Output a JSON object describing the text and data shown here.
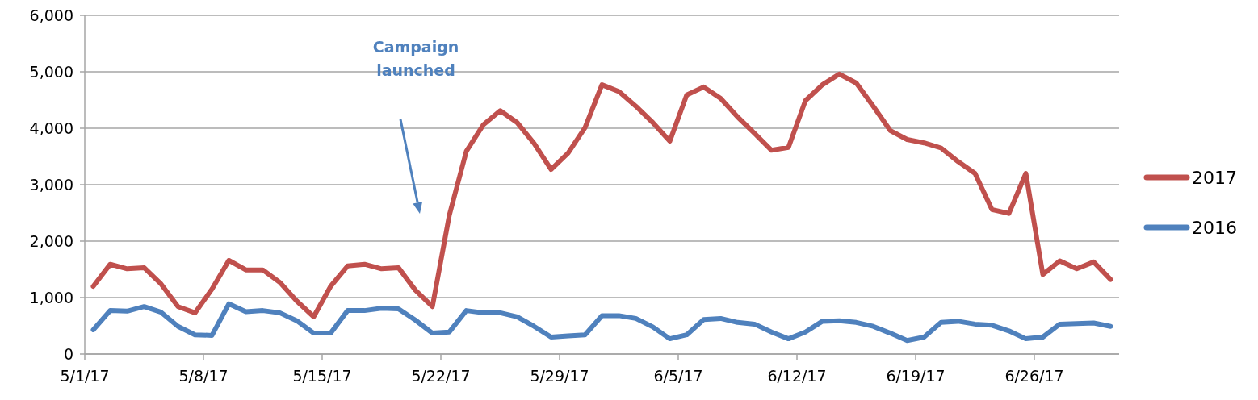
{
  "chart_data": {
    "type": "line",
    "x": [
      "2017-05-01T12:00",
      "2017-05-02T12:00",
      "2017-05-03T12:00",
      "2017-05-04T12:00",
      "2017-05-05T12:00",
      "2017-05-06T12:00",
      "2017-05-07T12:00",
      "2017-05-08T12:00",
      "2017-05-09T12:00",
      "2017-05-10T12:00",
      "2017-05-11T12:00",
      "2017-05-12T12:00",
      "2017-05-13T12:00",
      "2017-05-14T12:00",
      "2017-05-15T12:00",
      "2017-05-16T12:00",
      "2017-05-17T12:00",
      "2017-05-18T12:00",
      "2017-05-19T12:00",
      "2017-05-20T12:00",
      "2017-05-21T12:00",
      "2017-05-22T12:00",
      "2017-05-23T12:00",
      "2017-05-24T12:00",
      "2017-05-25T12:00",
      "2017-05-26T12:00",
      "2017-05-27T12:00",
      "2017-05-28T12:00",
      "2017-05-29T12:00",
      "2017-05-30T12:00",
      "2017-05-31T12:00",
      "2017-06-01T12:00",
      "2017-06-02T12:00",
      "2017-06-03T12:00",
      "2017-06-04T12:00",
      "2017-06-05T12:00",
      "2017-06-06T12:00",
      "2017-06-07T12:00",
      "2017-06-08T12:00",
      "2017-06-09T12:00",
      "2017-06-10T12:00",
      "2017-06-11T12:00",
      "2017-06-12T12:00",
      "2017-06-13T12:00",
      "2017-06-14T12:00",
      "2017-06-15T12:00",
      "2017-06-16T12:00",
      "2017-06-17T12:00",
      "2017-06-18T12:00",
      "2017-06-19T12:00",
      "2017-06-20T12:00",
      "2017-06-21T12:00",
      "2017-06-22T12:00",
      "2017-06-23T12:00",
      "2017-06-24T12:00",
      "2017-06-25T12:00",
      "2017-06-26T12:00",
      "2017-06-27T12:00",
      "2017-06-28T12:00",
      "2017-06-29T12:00",
      "2017-06-30T12:00"
    ],
    "series": [
      {
        "name": "2017",
        "color": "#c0504d",
        "values": [
          1200,
          1590,
          1510,
          1530,
          1240,
          840,
          730,
          1150,
          1660,
          1490,
          1490,
          1270,
          940,
          660,
          1200,
          1560,
          1590,
          1510,
          1530,
          1130,
          840,
          2460,
          3590,
          4060,
          4310,
          4100,
          3730,
          3270,
          3560,
          4010,
          4770,
          4650,
          4390,
          4100,
          3770,
          4590,
          4730,
          4530,
          4200,
          3910,
          3610,
          3660,
          4490,
          4770,
          4960,
          4800,
          4390,
          3960,
          3800,
          3740,
          3650,
          3410,
          3200,
          2560,
          2490,
          3200,
          1410,
          1650,
          1510,
          1630,
          1320
        ]
      },
      {
        "name": "2016",
        "color": "#4f81bd",
        "values": [
          430,
          770,
          760,
          840,
          740,
          490,
          340,
          330,
          890,
          750,
          770,
          730,
          590,
          370,
          370,
          770,
          770,
          810,
          800,
          600,
          370,
          390,
          770,
          730,
          730,
          660,
          490,
          300,
          320,
          340,
          680,
          680,
          630,
          480,
          270,
          340,
          610,
          630,
          560,
          530,
          390,
          270,
          390,
          580,
          590,
          560,
          490,
          370,
          240,
          300,
          560,
          580,
          530,
          510,
          410,
          270,
          300,
          530,
          540,
          550,
          490
        ]
      }
    ],
    "xlim": [
      "2017-05-01",
      "2017-07-01"
    ],
    "xticks": [
      {
        "value": "2017-05-01",
        "label": "5/1/17"
      },
      {
        "value": "2017-05-08",
        "label": "5/8/17"
      },
      {
        "value": "2017-05-15",
        "label": "5/15/17"
      },
      {
        "value": "2017-05-22",
        "label": "5/22/17"
      },
      {
        "value": "2017-05-29",
        "label": "5/29/17"
      },
      {
        "value": "2017-06-05",
        "label": "6/5/17"
      },
      {
        "value": "2017-06-12",
        "label": "6/12/17"
      },
      {
        "value": "2017-06-19",
        "label": "6/19/17"
      },
      {
        "value": "2017-06-26",
        "label": "6/26/17"
      }
    ],
    "ylim": [
      0,
      6000
    ],
    "yticks": [
      {
        "value": 0,
        "label": "0"
      },
      {
        "value": 1000,
        "label": "1,000"
      },
      {
        "value": 2000,
        "label": "2,000"
      },
      {
        "value": 3000,
        "label": "3,000"
      },
      {
        "value": 4000,
        "label": "4,000"
      },
      {
        "value": 5000,
        "label": "5,000"
      },
      {
        "value": 6000,
        "label": "6,000"
      }
    ],
    "grid": "y",
    "legend": "right",
    "marker": "none",
    "line_style": "solid",
    "annotations": [
      "Campaign\nlaunched"
    ]
  }
}
